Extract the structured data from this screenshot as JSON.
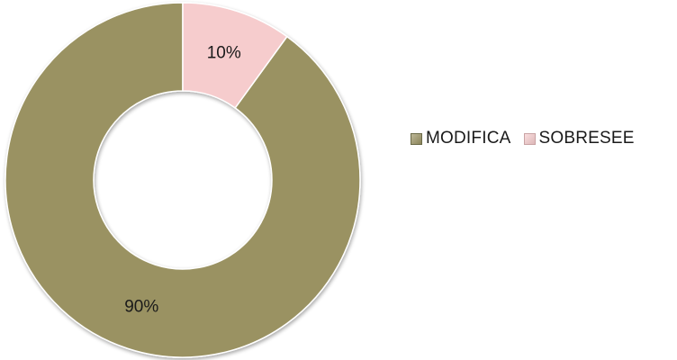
{
  "chart_data": {
    "type": "pie",
    "subtype": "donut",
    "categories": [
      "MODIFICA",
      "SOBRESEE"
    ],
    "values": [
      90,
      10
    ],
    "data_labels": [
      "90%",
      "10%"
    ],
    "colors": [
      "#9a9262",
      "#f6cccd"
    ],
    "legend": {
      "position": "right",
      "entries": [
        "MODIFICA",
        "SOBRESEE"
      ]
    },
    "title": "",
    "start_angle_deg": 0,
    "direction": "counterclockwise"
  }
}
